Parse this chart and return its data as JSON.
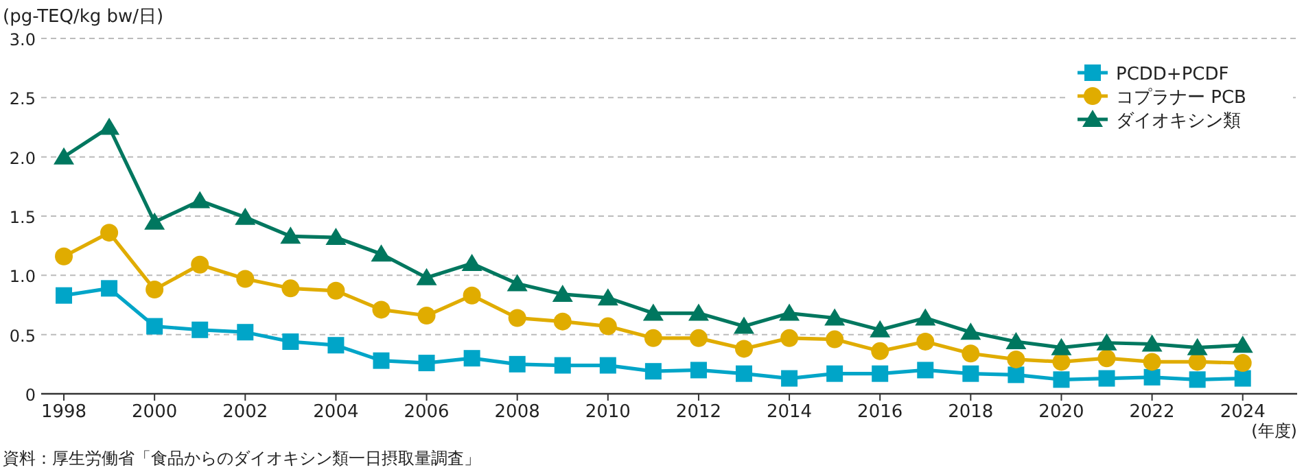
{
  "chart_data": {
    "type": "line",
    "ylabel": "(pg-TEQ/kg bw/日)",
    "xlabel": "(年度)",
    "annotations": [
      "資料：厚生労働省「食品からのダイオキシン類一日摂取量調査」"
    ],
    "x": [
      1998,
      1999,
      2000,
      2001,
      2002,
      2003,
      2004,
      2005,
      2006,
      2007,
      2008,
      2009,
      2010,
      2011,
      2012,
      2013,
      2014,
      2015,
      2016,
      2017,
      2018,
      2019,
      2020,
      2021,
      2022,
      2023,
      2024
    ],
    "xlim": [
      1997.5,
      2025.2
    ],
    "xticks": [
      1998,
      2000,
      2002,
      2004,
      2006,
      2008,
      2010,
      2012,
      2014,
      2016,
      2018,
      2020,
      2022,
      2024
    ],
    "ylim": [
      0,
      3.0
    ],
    "yticks": [
      0,
      {
        "value": 0.5,
        "label": "0.5"
      },
      {
        "value": 1.0,
        "label": "1.0"
      },
      {
        "value": 1.5,
        "label": "1.5"
      },
      {
        "value": 2.0,
        "label": "2.0"
      },
      {
        "value": 2.5,
        "label": "2.5"
      },
      {
        "value": 3.0,
        "label": "3.0"
      }
    ],
    "grid": "y",
    "legend": "top right",
    "line_style": "solid",
    "series": [
      {
        "name": "PCDD+PCDF",
        "color": "#00a5c8",
        "marker": "square",
        "values": [
          0.83,
          0.89,
          0.57,
          0.54,
          0.52,
          0.44,
          0.41,
          0.28,
          0.26,
          0.3,
          0.25,
          0.24,
          0.24,
          0.19,
          0.2,
          0.17,
          0.13,
          0.17,
          0.17,
          0.2,
          0.17,
          0.16,
          0.12,
          0.13,
          0.14,
          0.12,
          0.13
        ]
      },
      {
        "name": "コプラナー PCB",
        "color": "#e0ac00",
        "marker": "circle",
        "values": [
          1.16,
          1.36,
          0.88,
          1.09,
          0.97,
          0.89,
          0.87,
          0.71,
          0.66,
          0.83,
          0.64,
          0.61,
          0.57,
          0.47,
          0.47,
          0.38,
          0.47,
          0.46,
          0.36,
          0.44,
          0.34,
          0.29,
          0.27,
          0.3,
          0.27,
          0.27,
          0.26
        ]
      },
      {
        "name": "ダイオキシン類",
        "color": "#00775f",
        "marker": "triangle",
        "values": [
          2.0,
          2.25,
          1.45,
          1.63,
          1.49,
          1.33,
          1.32,
          1.18,
          0.98,
          1.1,
          0.93,
          0.84,
          0.81,
          0.68,
          0.68,
          0.57,
          0.68,
          0.64,
          0.54,
          0.64,
          0.52,
          0.44,
          0.39,
          0.43,
          0.42,
          0.39,
          0.41
        ]
      }
    ]
  }
}
